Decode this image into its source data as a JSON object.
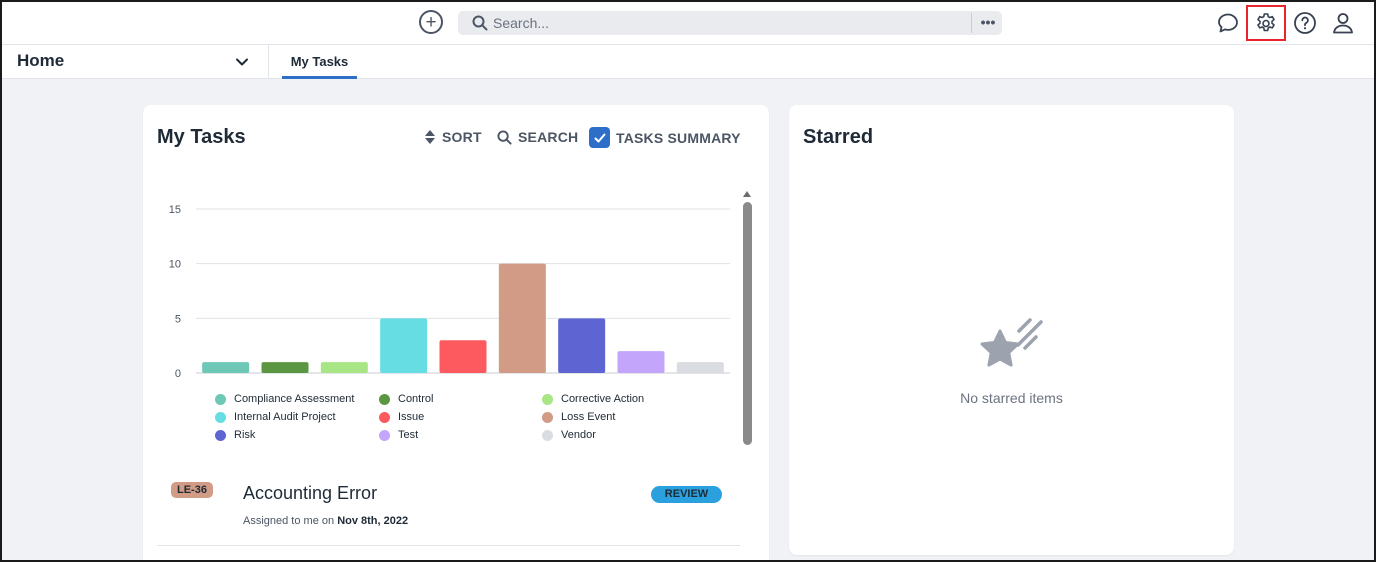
{
  "search": {
    "placeholder": "Search...",
    "more_label": "•••"
  },
  "nav": {
    "title": "Home",
    "tabs": [
      {
        "label": "My Tasks",
        "active": true
      }
    ]
  },
  "tasks_card": {
    "title": "My Tasks",
    "sort_label": "SORT",
    "search_label": "SEARCH",
    "summary_label": "TASKS SUMMARY",
    "summary_checked": true
  },
  "chart_data": {
    "type": "bar",
    "title": "",
    "xlabel": "",
    "ylabel": "",
    "ylim": [
      0,
      15
    ],
    "yticks": [
      "0",
      "5",
      "10",
      "15"
    ],
    "grid": true,
    "legend_position": "bottom",
    "categories": [
      "Compliance Assessment",
      "Control",
      "Corrective Action",
      "Internal Audit Project",
      "Issue",
      "Loss Event",
      "Risk",
      "Test",
      "Vendor"
    ],
    "values": [
      1,
      1,
      1,
      5,
      3,
      10,
      5,
      2,
      1
    ],
    "colors": [
      "#6dc8b6",
      "#5b9642",
      "#a8e585",
      "#66dde2",
      "#fc5a5e",
      "#d19b86",
      "#5f64d3",
      "#c3a5fb",
      "#d9dce0"
    ],
    "legend_order": [
      0,
      1,
      2,
      3,
      4,
      5,
      6,
      7,
      8
    ]
  },
  "task": {
    "badge": "LE-36",
    "badge_color": "#d19b86",
    "title": "Accounting Error",
    "status": "REVIEW",
    "status_color": "#2aa0de",
    "meta_prefix": "Assigned to me on",
    "meta_date": "Nov 8th, 2022"
  },
  "starred_card": {
    "title": "Starred",
    "empty_text": "No starred items"
  },
  "icons": {
    "add": "plus-circle-icon",
    "search": "search-icon",
    "chat": "chat-bubble-icon",
    "settings": "gear-icon",
    "help": "help-circle-icon",
    "user": "user-icon",
    "starred_empty": "shooting-star-icon"
  },
  "colors": {
    "accent": "#2d6ec9",
    "highlight": "#e8252c"
  }
}
